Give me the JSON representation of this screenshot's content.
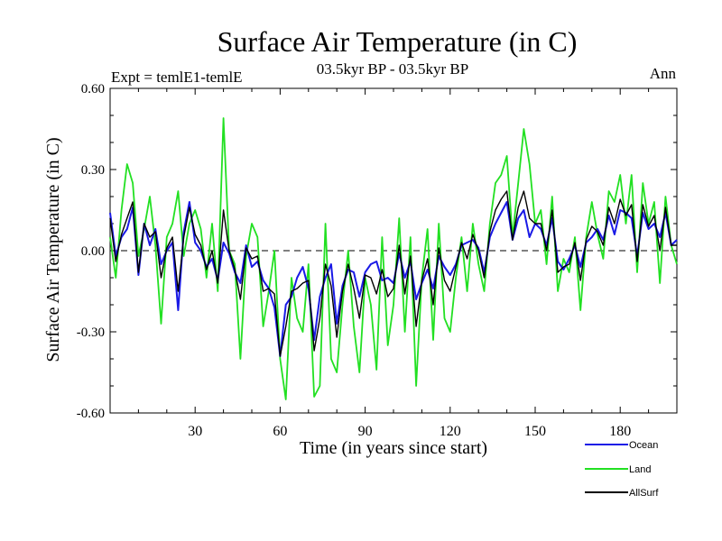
{
  "chart_data": {
    "type": "line",
    "title": "Surface Air Temperature (in C)",
    "subtitle": "03.5kyr BP - 03.5kyr BP",
    "left_label": "Expt = temlE1-temlE",
    "right_label": "Ann",
    "xlabel": "Time (in years since start)",
    "ylabel": "Surface Air Temperature (in C)",
    "xlim": [
      0,
      200
    ],
    "ylim": [
      -0.6,
      0.6
    ],
    "x_ticks": [
      30,
      60,
      90,
      120,
      150,
      180
    ],
    "x_tick_labels": [
      "30",
      "60",
      "90",
      "120",
      "150",
      "180"
    ],
    "y_ticks": [
      -0.6,
      -0.3,
      0.0,
      0.3,
      0.6
    ],
    "y_tick_labels": [
      "-0.60",
      "-0.30",
      "0.00",
      "0.30",
      "0.60"
    ],
    "zero_line": true,
    "legend_position": "bottom-right",
    "series": [
      {
        "name": "Ocean",
        "color": "#1a1ae6",
        "x": [
          0,
          2,
          4,
          6,
          8,
          10,
          12,
          14,
          16,
          18,
          20,
          22,
          24,
          26,
          28,
          30,
          32,
          34,
          36,
          38,
          40,
          42,
          44,
          46,
          48,
          50,
          52,
          54,
          56,
          58,
          60,
          62,
          64,
          66,
          68,
          70,
          72,
          74,
          76,
          78,
          80,
          82,
          84,
          86,
          88,
          90,
          92,
          94,
          96,
          98,
          100,
          102,
          104,
          106,
          108,
          110,
          112,
          114,
          116,
          118,
          120,
          122,
          124,
          126,
          128,
          130,
          132,
          134,
          136,
          138,
          140,
          142,
          144,
          146,
          148,
          150,
          152,
          154,
          156,
          158,
          160,
          162,
          164,
          166,
          168,
          170,
          172,
          174,
          176,
          178,
          180,
          182,
          184,
          186,
          188,
          190,
          192,
          194,
          196,
          198,
          200
        ],
        "values": [
          0.14,
          -0.02,
          0.05,
          0.08,
          0.16,
          -0.09,
          0.1,
          0.02,
          0.08,
          -0.05,
          0.0,
          0.03,
          -0.22,
          0.07,
          0.18,
          0.03,
          0.0,
          -0.06,
          -0.03,
          -0.11,
          0.03,
          -0.01,
          -0.08,
          -0.12,
          0.02,
          -0.06,
          -0.04,
          -0.11,
          -0.14,
          -0.21,
          -0.39,
          -0.2,
          -0.17,
          -0.1,
          -0.06,
          -0.14,
          -0.33,
          -0.17,
          -0.1,
          -0.05,
          -0.27,
          -0.13,
          -0.07,
          -0.08,
          -0.17,
          -0.08,
          -0.05,
          -0.04,
          -0.11,
          -0.1,
          -0.12,
          -0.01,
          -0.1,
          -0.04,
          -0.18,
          -0.12,
          -0.07,
          -0.14,
          -0.02,
          -0.06,
          -0.09,
          -0.05,
          0.02,
          0.03,
          0.04,
          0.01,
          -0.08,
          0.05,
          0.1,
          0.14,
          0.18,
          0.04,
          0.12,
          0.15,
          0.05,
          0.1,
          0.08,
          0.02,
          0.12,
          -0.04,
          -0.07,
          -0.03,
          0.02,
          -0.06,
          0.03,
          0.05,
          0.08,
          0.04,
          0.13,
          0.06,
          0.15,
          0.14,
          0.12,
          -0.02,
          0.14,
          0.08,
          0.1,
          0.05,
          0.14,
          0.02,
          0.04
        ]
      },
      {
        "name": "Land",
        "color": "#22e022",
        "x": [
          0,
          2,
          4,
          6,
          8,
          10,
          12,
          14,
          16,
          18,
          20,
          22,
          24,
          26,
          28,
          30,
          32,
          34,
          36,
          38,
          40,
          42,
          44,
          46,
          48,
          50,
          52,
          54,
          56,
          58,
          60,
          62,
          64,
          66,
          68,
          70,
          72,
          74,
          76,
          78,
          80,
          82,
          84,
          86,
          88,
          90,
          92,
          94,
          96,
          98,
          100,
          102,
          104,
          106,
          108,
          110,
          112,
          114,
          116,
          118,
          120,
          122,
          124,
          126,
          128,
          130,
          132,
          134,
          136,
          138,
          140,
          142,
          144,
          146,
          148,
          150,
          152,
          154,
          156,
          158,
          160,
          162,
          164,
          166,
          168,
          170,
          172,
          174,
          176,
          178,
          180,
          182,
          184,
          186,
          188,
          190,
          192,
          194,
          196,
          198,
          200
        ],
        "values": [
          0.05,
          -0.1,
          0.15,
          0.32,
          0.25,
          -0.02,
          0.08,
          0.2,
          0.02,
          -0.27,
          0.05,
          0.1,
          0.22,
          -0.02,
          0.1,
          0.15,
          0.08,
          -0.1,
          0.1,
          -0.15,
          0.49,
          0.0,
          -0.05,
          -0.4,
          -0.02,
          0.1,
          0.05,
          -0.28,
          -0.15,
          0.0,
          -0.4,
          -0.55,
          -0.1,
          -0.25,
          -0.3,
          -0.05,
          -0.54,
          -0.5,
          0.1,
          -0.4,
          -0.45,
          -0.2,
          0.0,
          -0.28,
          -0.45,
          -0.1,
          -0.2,
          -0.44,
          0.05,
          -0.35,
          -0.2,
          0.12,
          -0.3,
          0.05,
          -0.5,
          -0.1,
          0.08,
          -0.33,
          0.1,
          -0.25,
          -0.3,
          -0.1,
          0.05,
          -0.15,
          0.1,
          -0.05,
          -0.15,
          0.1,
          0.25,
          0.28,
          0.35,
          0.05,
          0.25,
          0.45,
          0.32,
          0.1,
          0.15,
          -0.05,
          0.2,
          -0.15,
          -0.03,
          -0.08,
          0.05,
          -0.22,
          0.05,
          0.18,
          0.06,
          -0.03,
          0.22,
          0.18,
          0.28,
          0.1,
          0.28,
          -0.08,
          0.25,
          0.1,
          0.18,
          -0.12,
          0.2,
          0.02,
          -0.05
        ]
      },
      {
        "name": "AllSurf",
        "color": "#000000",
        "x": [
          0,
          2,
          4,
          6,
          8,
          10,
          12,
          14,
          16,
          18,
          20,
          22,
          24,
          26,
          28,
          30,
          32,
          34,
          36,
          38,
          40,
          42,
          44,
          46,
          48,
          50,
          52,
          54,
          56,
          58,
          60,
          62,
          64,
          66,
          68,
          70,
          72,
          74,
          76,
          78,
          80,
          82,
          84,
          86,
          88,
          90,
          92,
          94,
          96,
          98,
          100,
          102,
          104,
          106,
          108,
          110,
          112,
          114,
          116,
          118,
          120,
          122,
          124,
          126,
          128,
          130,
          132,
          134,
          136,
          138,
          140,
          142,
          144,
          146,
          148,
          150,
          152,
          154,
          156,
          158,
          160,
          162,
          164,
          166,
          168,
          170,
          172,
          174,
          176,
          178,
          180,
          182,
          184,
          186,
          188,
          190,
          192,
          194,
          196,
          198,
          200
        ],
        "values": [
          0.12,
          -0.04,
          0.06,
          0.12,
          0.18,
          -0.08,
          0.1,
          0.05,
          0.07,
          -0.1,
          0.01,
          0.05,
          -0.15,
          0.05,
          0.16,
          0.06,
          0.02,
          -0.07,
          0.0,
          -0.12,
          0.15,
          0.0,
          -0.07,
          -0.18,
          0.01,
          -0.03,
          -0.02,
          -0.15,
          -0.14,
          -0.16,
          -0.39,
          -0.28,
          -0.15,
          -0.14,
          -0.12,
          -0.11,
          -0.37,
          -0.25,
          -0.05,
          -0.13,
          -0.32,
          -0.15,
          -0.05,
          -0.14,
          -0.25,
          -0.09,
          -0.1,
          -0.16,
          -0.07,
          -0.17,
          -0.14,
          0.02,
          -0.16,
          -0.02,
          -0.28,
          -0.11,
          -0.03,
          -0.2,
          0.01,
          -0.11,
          -0.15,
          -0.06,
          0.03,
          -0.03,
          0.06,
          0.0,
          -0.1,
          0.07,
          0.15,
          0.19,
          0.22,
          0.04,
          0.16,
          0.22,
          0.12,
          0.1,
          0.1,
          0.0,
          0.15,
          -0.08,
          -0.06,
          -0.05,
          0.03,
          -0.11,
          0.04,
          0.09,
          0.07,
          0.02,
          0.16,
          0.1,
          0.19,
          0.13,
          0.17,
          -0.04,
          0.17,
          0.09,
          0.13,
          0.0,
          0.16,
          0.02,
          0.02
        ]
      }
    ]
  }
}
